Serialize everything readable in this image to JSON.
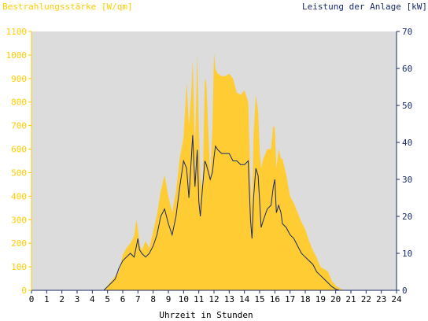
{
  "chart_data": {
    "type": "area",
    "ylabel_left": "Bestrahlungsstärke [W/qm]",
    "ylabel_right": "Leistung der Anlage [kW]",
    "xlabel": "Uhrzeit in Stunden",
    "x_ticks": [
      0,
      1,
      2,
      3,
      4,
      5,
      6,
      7,
      8,
      9,
      10,
      11,
      12,
      13,
      14,
      15,
      16,
      17,
      18,
      19,
      20,
      21,
      22,
      23,
      24
    ],
    "y_left_ticks": [
      0,
      100,
      200,
      300,
      400,
      500,
      600,
      700,
      800,
      900,
      1000,
      1100
    ],
    "y_right_ticks": [
      0,
      10,
      20,
      30,
      40,
      50,
      60,
      70
    ],
    "xlim": [
      0,
      24
    ],
    "ylim_left": [
      0,
      1100
    ],
    "ylim_right": [
      0,
      70
    ],
    "grid": false,
    "colors": {
      "irradiance_fill": "#ffcc33",
      "power_line": "#1a2a6c",
      "plot_background": "#dcdcdc",
      "left_axis_text": "#ffcc00",
      "right_axis_text": "#1a2a6c"
    },
    "series": [
      {
        "axis": "left",
        "kind": "area",
        "x": [
          0,
          4.75,
          5.0,
          5.25,
          5.5,
          5.75,
          6.0,
          6.25,
          6.5,
          6.75,
          6.9,
          7.0,
          7.1,
          7.25,
          7.5,
          7.75,
          8.0,
          8.25,
          8.5,
          8.75,
          9.0,
          9.25,
          9.5,
          9.75,
          10.0,
          10.2,
          10.35,
          10.5,
          10.6,
          10.75,
          10.9,
          11.0,
          11.1,
          11.25,
          11.4,
          11.5,
          11.75,
          11.9,
          12.0,
          12.1,
          12.25,
          12.5,
          12.75,
          13.0,
          13.25,
          13.5,
          13.75,
          14.0,
          14.25,
          14.4,
          14.5,
          14.6,
          14.75,
          14.9,
          15.0,
          15.1,
          15.25,
          15.5,
          15.75,
          15.9,
          16.0,
          16.1,
          16.25,
          16.4,
          16.5,
          16.75,
          17.0,
          17.25,
          17.5,
          17.75,
          18.0,
          18.25,
          18.5,
          18.75,
          19.0,
          19.25,
          19.5,
          19.75,
          20.0,
          20.25,
          20.5,
          21.0,
          24
        ],
        "values": [
          0,
          0,
          20,
          40,
          60,
          80,
          150,
          180,
          200,
          230,
          300,
          260,
          200,
          170,
          210,
          180,
          250,
          320,
          420,
          490,
          400,
          330,
          420,
          560,
          650,
          880,
          700,
          830,
          980,
          600,
          1000,
          700,
          480,
          420,
          900,
          880,
          480,
          700,
          1010,
          940,
          920,
          910,
          910,
          920,
          900,
          840,
          830,
          850,
          800,
          470,
          350,
          660,
          830,
          760,
          600,
          520,
          560,
          600,
          600,
          700,
          690,
          520,
          600,
          560,
          560,
          490,
          400,
          370,
          330,
          290,
          260,
          210,
          170,
          140,
          100,
          90,
          80,
          40,
          20,
          10,
          0,
          0,
          0
        ]
      },
      {
        "axis": "right",
        "kind": "line",
        "x": [
          0,
          4.75,
          5.0,
          5.25,
          5.5,
          5.75,
          6.0,
          6.25,
          6.5,
          6.75,
          6.9,
          7.0,
          7.1,
          7.25,
          7.5,
          7.75,
          8.0,
          8.25,
          8.5,
          8.75,
          9.0,
          9.25,
          9.5,
          9.75,
          10.0,
          10.2,
          10.35,
          10.5,
          10.6,
          10.75,
          10.9,
          11.0,
          11.1,
          11.25,
          11.4,
          11.5,
          11.75,
          11.9,
          12.0,
          12.1,
          12.25,
          12.5,
          12.75,
          13.0,
          13.25,
          13.5,
          13.75,
          14.0,
          14.25,
          14.4,
          14.5,
          14.6,
          14.75,
          14.9,
          15.0,
          15.1,
          15.25,
          15.5,
          15.75,
          15.9,
          16.0,
          16.1,
          16.25,
          16.4,
          16.5,
          16.75,
          17.0,
          17.25,
          17.5,
          17.75,
          18.0,
          18.25,
          18.5,
          18.75,
          19.0,
          19.25,
          19.5,
          19.75,
          20.0,
          20.25,
          20.5,
          21.0,
          24
        ],
        "values": [
          0,
          0,
          1,
          2,
          3,
          6,
          8,
          9,
          10,
          9,
          12,
          14,
          11,
          10,
          9,
          10,
          12,
          15,
          20,
          22,
          18,
          15,
          20,
          28,
          35,
          33,
          25,
          35,
          42,
          28,
          38,
          24,
          20,
          28,
          35,
          34,
          30,
          32,
          36,
          39,
          38,
          37,
          37,
          37,
          35,
          35,
          34,
          34,
          35,
          19,
          14,
          25,
          33,
          31,
          24,
          17,
          19,
          22,
          23,
          28,
          30,
          21,
          23,
          21,
          18,
          17,
          15,
          14,
          12,
          10,
          9,
          8,
          7,
          5,
          4,
          3,
          2,
          1,
          0.3,
          0,
          0,
          0,
          0
        ]
      }
    ]
  }
}
